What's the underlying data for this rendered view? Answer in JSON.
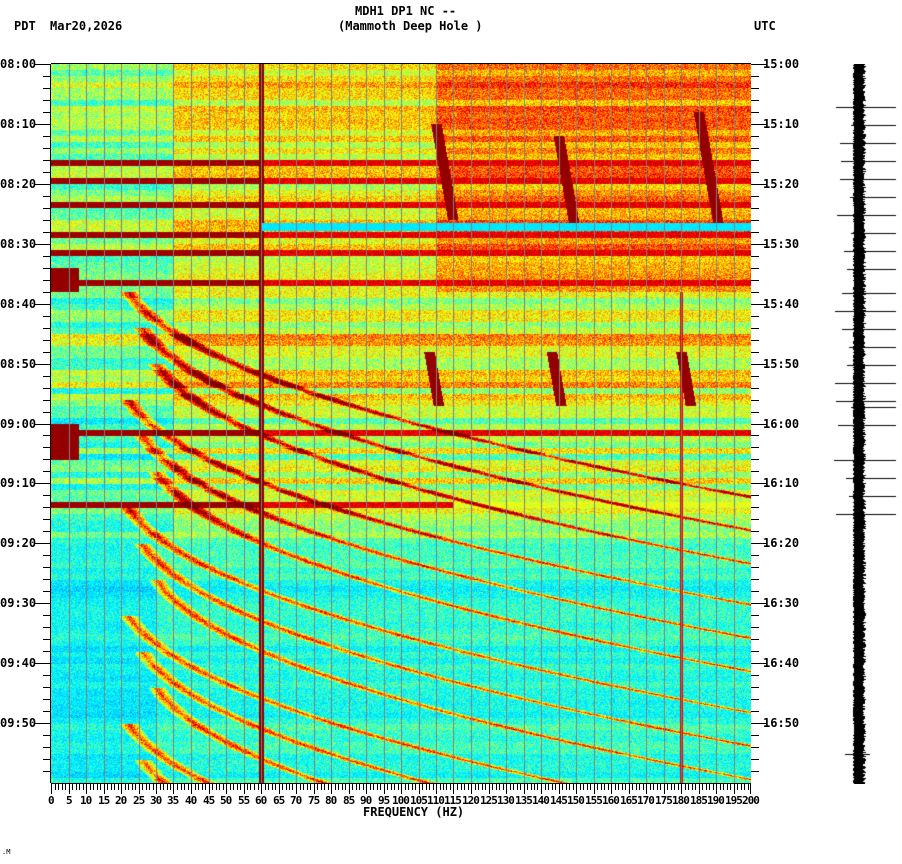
{
  "header": {
    "station_line": "MDH1 DP1 NC --",
    "site_line": "(Mammoth Deep Hole )",
    "left_timezone": "PDT",
    "date": "Mar20,2026",
    "right_timezone": "UTC"
  },
  "footnote": ".M",
  "colors": {
    "background": "#ffffff",
    "axis": "#000000",
    "gridline": "#808080",
    "colormap": [
      "#00008f",
      "#0050ff",
      "#00c8ff",
      "#00ffff",
      "#80ff80",
      "#ffff00",
      "#ff8000",
      "#ff0000",
      "#800000"
    ]
  },
  "chart_data": {
    "type": "heatmap",
    "title": "MDH1 DP1 NC -- (Mammoth Deep Hole )",
    "xlabel": "FREQUENCY (HZ)",
    "ylabel_left": "PDT",
    "ylabel_right": "UTC",
    "xlim": [
      0,
      200
    ],
    "x_ticks": [
      0,
      5,
      10,
      15,
      20,
      25,
      30,
      35,
      40,
      45,
      50,
      55,
      60,
      65,
      70,
      75,
      80,
      85,
      90,
      95,
      100,
      105,
      110,
      115,
      120,
      125,
      130,
      135,
      140,
      145,
      150,
      155,
      160,
      165,
      170,
      175,
      180,
      185,
      190,
      195,
      200
    ],
    "y_ticks_left": [
      "08:00",
      "08:10",
      "08:20",
      "08:30",
      "08:40",
      "08:50",
      "09:00",
      "09:10",
      "09:20",
      "09:30",
      "09:40",
      "09:50"
    ],
    "y_ticks_right": [
      "15:00",
      "15:10",
      "15:20",
      "15:30",
      "15:40",
      "15:50",
      "16:00",
      "16:10",
      "16:20",
      "16:30",
      "16:40",
      "16:50"
    ],
    "time_span_minutes": 120,
    "minor_tick_minutes": 2,
    "grid_frequency_step_hz": 5,
    "features": {
      "persistent_lines_hz": [
        60,
        180
      ],
      "high_noise_period_pdt": [
        "08:00",
        "08:38"
      ],
      "strong_broadband_rows_pdt": [
        "08:17",
        "08:20",
        "08:23",
        "08:28",
        "08:31",
        "08:36",
        "09:01",
        "09:12"
      ],
      "transient_events_hz": [
        110,
        145,
        185
      ],
      "curved_harmonic_sweeps": true,
      "quiet_period_pdt": [
        "09:20",
        "10:00"
      ]
    },
    "colorscale": "jet (blue = low power, dark red = high power)"
  },
  "seismogram": {
    "trace_color": "#000000",
    "spike_rows_pdt": [
      "08:07",
      "08:10",
      "08:13",
      "08:16",
      "08:19",
      "08:22",
      "08:25",
      "08:28",
      "08:31",
      "08:34",
      "08:38",
      "08:41",
      "08:44",
      "08:47",
      "08:50",
      "08:53",
      "08:56",
      "08:57",
      "09:00",
      "09:06",
      "09:09",
      "09:12",
      "09:15",
      "09:55"
    ]
  }
}
